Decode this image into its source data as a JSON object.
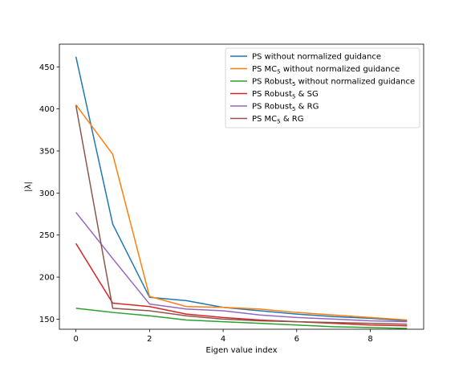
{
  "chart_data": {
    "type": "line",
    "title": "",
    "xlabel": "Eigen value index",
    "ylabel": "|λ|",
    "xlim": [
      -0.45,
      9.45
    ],
    "ylim": [
      138,
      477
    ],
    "xticks": [
      0,
      2,
      4,
      6,
      8
    ],
    "yticks": [
      150,
      200,
      250,
      300,
      350,
      400,
      450
    ],
    "grid": false,
    "legend_position": "top-right",
    "x": [
      0,
      1,
      2,
      3,
      4,
      5,
      6,
      7,
      8,
      9
    ],
    "series": [
      {
        "name": "PS without normalized guidance",
        "name_main": "PS without normalized guidance",
        "name_sub": "",
        "name_rest": "",
        "color": "#1f77b4",
        "values": [
          462,
          263,
          176,
          172,
          164,
          160,
          156,
          153,
          151,
          148
        ]
      },
      {
        "name": "PS MC5 without normalized guidance",
        "name_main": "PS MC",
        "name_sub": "5",
        "name_rest": " without normalized guidance",
        "color": "#ff7f0e",
        "values": [
          405,
          346,
          177,
          165,
          164,
          162,
          158,
          155,
          152,
          149
        ]
      },
      {
        "name": "PS Robust5 without normalized guidance",
        "name_main": "PS Robust",
        "name_sub": "5",
        "name_rest": " without normalized guidance",
        "color": "#2ca02c",
        "values": [
          163,
          158,
          154,
          149,
          147,
          145,
          143,
          141,
          140,
          139
        ]
      },
      {
        "name": "PS Robust5 & SG",
        "name_main": "PS Robust",
        "name_sub": "5",
        "name_rest": " & SG",
        "color": "#d62728",
        "values": [
          240,
          169,
          165,
          156,
          152,
          149,
          147,
          145,
          143,
          142
        ]
      },
      {
        "name": "PS Robust5 & RG",
        "name_main": "PS Robust",
        "name_sub": "5",
        "name_rest": " & RG",
        "color": "#9467bd",
        "values": [
          277,
          222,
          168,
          162,
          160,
          155,
          152,
          150,
          148,
          147
        ]
      },
      {
        "name": "PS MC5 & RG",
        "name_main": "PS MC",
        "name_sub": "5",
        "name_rest": " & RG",
        "color": "#8c564b",
        "values": [
          404,
          163,
          160,
          154,
          150,
          148,
          147,
          146,
          145,
          144
        ]
      }
    ]
  }
}
